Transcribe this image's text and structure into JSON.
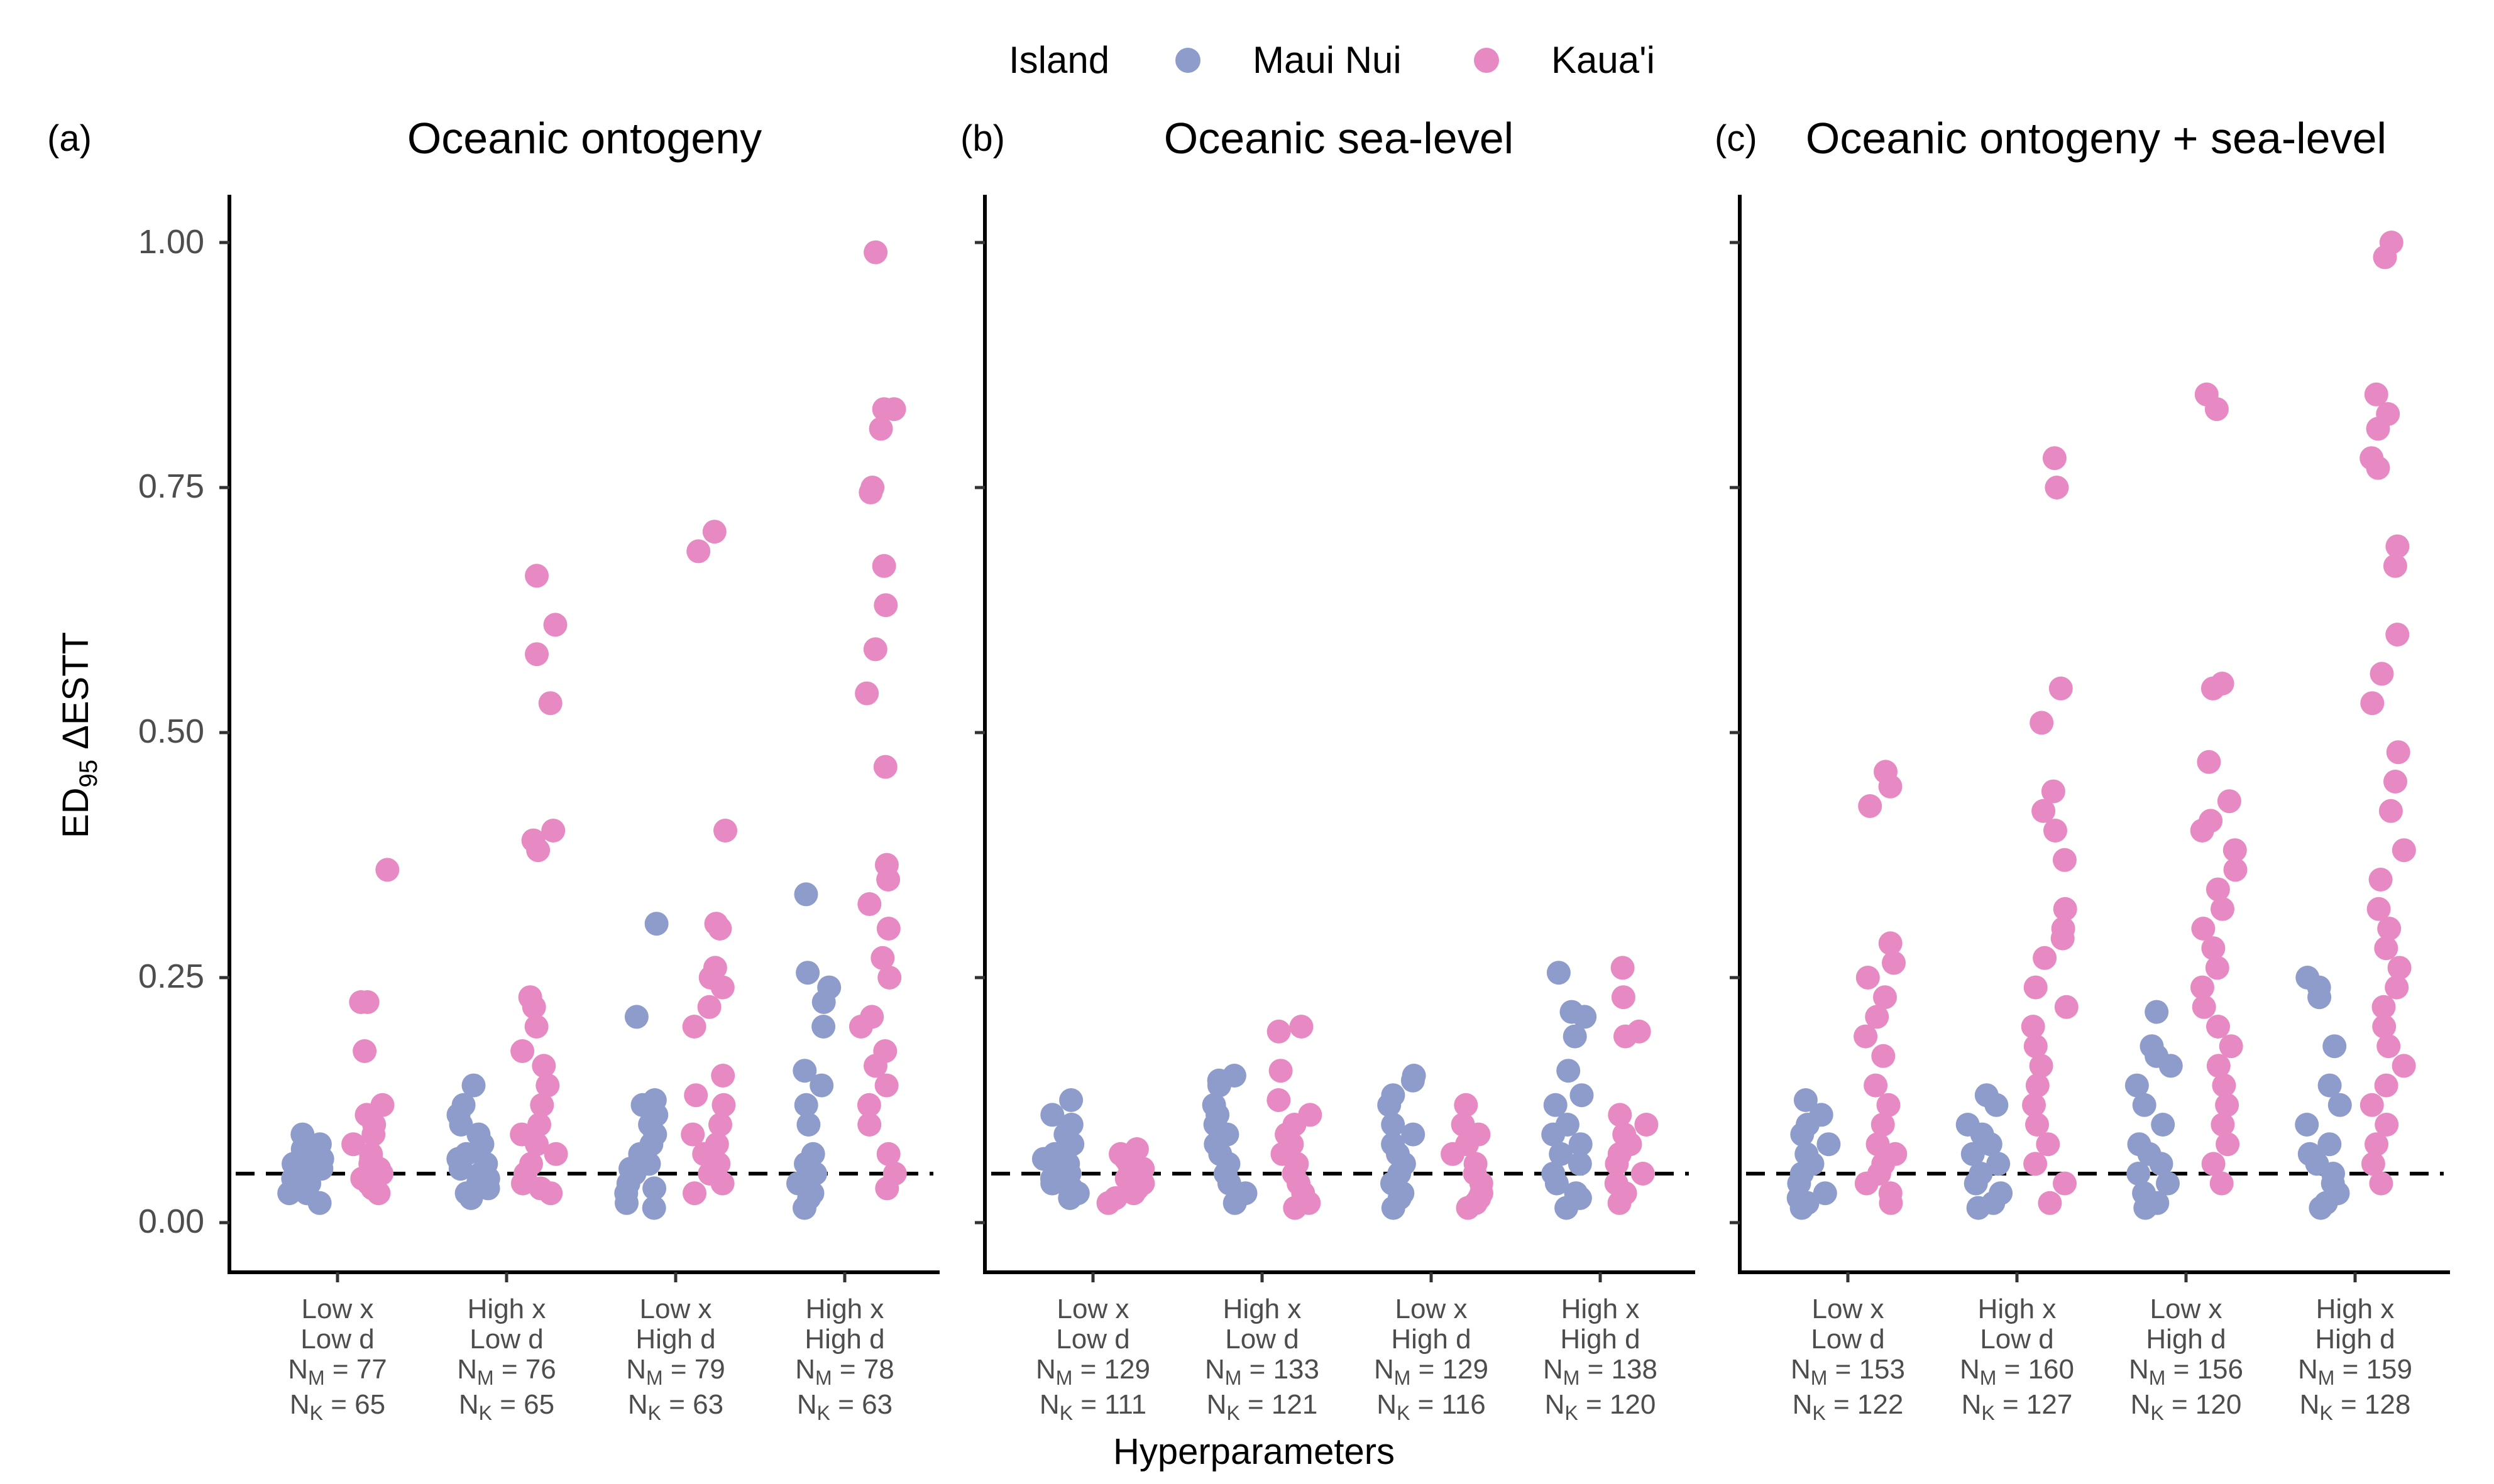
{
  "legend": {
    "title": "Island",
    "items": [
      {
        "label": "Maui Nui",
        "color": "#8E9CCB"
      },
      {
        "label": "Kaua'i",
        "color": "#E78AC3"
      }
    ]
  },
  "axes": {
    "ylabel_main": "ED",
    "ylabel_sub": "95",
    "ylabel_rest": " ΔESTT",
    "xlabel": "Hyperparameters",
    "yticks": [
      "0.00",
      "0.25",
      "0.50",
      "0.75",
      "1.00"
    ]
  },
  "chart_data": {
    "type": "scatter",
    "ylim": [
      -0.05,
      1.05
    ],
    "reference_line": {
      "y": 0.05,
      "style": "dashed"
    },
    "panels": [
      {
        "tag": "(a)",
        "title": "Oceanic ontogeny",
        "groups": [
          {
            "line1": "Low x",
            "line2": "Low d",
            "nm": "77",
            "nk": "65",
            "maui": [
              0.02,
              0.03,
              0.03,
              0.035,
              0.04,
              0.04,
              0.045,
              0.05,
              0.05,
              0.055,
              0.06,
              0.06,
              0.065,
              0.07,
              0.075,
              0.08,
              0.09
            ],
            "kauai": [
              0.03,
              0.035,
              0.04,
              0.045,
              0.05,
              0.055,
              0.06,
              0.065,
              0.07,
              0.08,
              0.09,
              0.1,
              0.11,
              0.12,
              0.175,
              0.225,
              0.225,
              0.36
            ]
          },
          {
            "line1": "High x",
            "line2": "Low d",
            "nm": "76",
            "nk": "65",
            "maui": [
              0.025,
              0.03,
              0.035,
              0.04,
              0.045,
              0.05,
              0.055,
              0.06,
              0.065,
              0.07,
              0.08,
              0.09,
              0.1,
              0.11,
              0.12,
              0.14
            ],
            "kauai": [
              0.03,
              0.035,
              0.04,
              0.05,
              0.06,
              0.07,
              0.08,
              0.09,
              0.1,
              0.12,
              0.14,
              0.16,
              0.175,
              0.2,
              0.22,
              0.23,
              0.38,
              0.39,
              0.4,
              0.53,
              0.58,
              0.61,
              0.66
            ]
          },
          {
            "line1": "Low x",
            "line2": "High d",
            "nm": "79",
            "nk": "63",
            "maui": [
              0.015,
              0.02,
              0.03,
              0.035,
              0.04,
              0.05,
              0.055,
              0.06,
              0.07,
              0.08,
              0.09,
              0.1,
              0.11,
              0.12,
              0.125,
              0.21,
              0.305
            ],
            "kauai": [
              0.03,
              0.04,
              0.05,
              0.06,
              0.07,
              0.08,
              0.09,
              0.1,
              0.12,
              0.13,
              0.15,
              0.2,
              0.22,
              0.24,
              0.25,
              0.26,
              0.3,
              0.305,
              0.4,
              0.685,
              0.705
            ]
          },
          {
            "line1": "High x",
            "line2": "High d",
            "nm": "78",
            "nk": "63",
            "maui": [
              0.015,
              0.025,
              0.03,
              0.04,
              0.05,
              0.06,
              0.07,
              0.1,
              0.12,
              0.14,
              0.155,
              0.2,
              0.225,
              0.24,
              0.255,
              0.335
            ],
            "kauai": [
              0.035,
              0.05,
              0.07,
              0.1,
              0.12,
              0.14,
              0.16,
              0.175,
              0.2,
              0.21,
              0.25,
              0.27,
              0.3,
              0.325,
              0.35,
              0.365,
              0.465,
              0.54,
              0.585,
              0.63,
              0.67,
              0.745,
              0.75,
              0.81,
              0.83,
              0.83,
              0.99
            ]
          }
        ]
      },
      {
        "tag": "(b)",
        "title": "Oceanic sea-level",
        "groups": [
          {
            "line1": "Low x",
            "line2": "Low d",
            "nm": "129",
            "nk": "111",
            "maui": [
              0.025,
              0.03,
              0.035,
              0.04,
              0.045,
              0.05,
              0.055,
              0.06,
              0.065,
              0.07,
              0.08,
              0.09,
              0.1,
              0.11,
              0.125
            ],
            "kauai": [
              0.02,
              0.025,
              0.03,
              0.035,
              0.04,
              0.045,
              0.05,
              0.055,
              0.06,
              0.065,
              0.07,
              0.075
            ]
          },
          {
            "line1": "High x",
            "line2": "Low d",
            "nm": "133",
            "nk": "121",
            "maui": [
              0.02,
              0.03,
              0.04,
              0.05,
              0.06,
              0.07,
              0.08,
              0.09,
              0.1,
              0.11,
              0.12,
              0.14,
              0.145,
              0.15
            ],
            "kauai": [
              0.015,
              0.02,
              0.03,
              0.04,
              0.05,
              0.06,
              0.07,
              0.08,
              0.09,
              0.1,
              0.11,
              0.125,
              0.155,
              0.195,
              0.2
            ]
          },
          {
            "line1": "Low x",
            "line2": "High d",
            "nm": "129",
            "nk": "116",
            "maui": [
              0.015,
              0.025,
              0.03,
              0.04,
              0.05,
              0.06,
              0.07,
              0.08,
              0.09,
              0.1,
              0.12,
              0.13,
              0.145,
              0.15
            ],
            "kauai": [
              0.015,
              0.02,
              0.025,
              0.03,
              0.04,
              0.05,
              0.06,
              0.07,
              0.08,
              0.09,
              0.1,
              0.12
            ]
          },
          {
            "line1": "High x",
            "line2": "High d",
            "nm": "138",
            "nk": "120",
            "maui": [
              0.015,
              0.025,
              0.03,
              0.04,
              0.05,
              0.06,
              0.07,
              0.08,
              0.09,
              0.1,
              0.12,
              0.13,
              0.155,
              0.19,
              0.21,
              0.215,
              0.255
            ],
            "kauai": [
              0.02,
              0.03,
              0.04,
              0.05,
              0.06,
              0.07,
              0.08,
              0.09,
              0.1,
              0.11,
              0.19,
              0.195,
              0.23,
              0.26
            ]
          }
        ]
      },
      {
        "tag": "(c)",
        "title": "Oceanic ontogeny + sea-level",
        "groups": [
          {
            "line1": "Low x",
            "line2": "Low d",
            "nm": "153",
            "nk": "122",
            "maui": [
              0.015,
              0.02,
              0.025,
              0.03,
              0.04,
              0.05,
              0.06,
              0.07,
              0.08,
              0.09,
              0.1,
              0.11,
              0.125
            ],
            "kauai": [
              0.02,
              0.03,
              0.04,
              0.05,
              0.06,
              0.07,
              0.08,
              0.1,
              0.12,
              0.14,
              0.17,
              0.19,
              0.21,
              0.23,
              0.25,
              0.265,
              0.285,
              0.425,
              0.445,
              0.46
            ]
          },
          {
            "line1": "High x",
            "line2": "Low d",
            "nm": "160",
            "nk": "127",
            "maui": [
              0.015,
              0.02,
              0.03,
              0.04,
              0.05,
              0.06,
              0.07,
              0.08,
              0.09,
              0.1,
              0.12,
              0.13
            ],
            "kauai": [
              0.02,
              0.04,
              0.06,
              0.08,
              0.1,
              0.12,
              0.14,
              0.16,
              0.18,
              0.2,
              0.22,
              0.24,
              0.27,
              0.29,
              0.3,
              0.32,
              0.37,
              0.4,
              0.42,
              0.44,
              0.51,
              0.545,
              0.75,
              0.78
            ]
          },
          {
            "line1": "Low x",
            "line2": "High d",
            "nm": "156",
            "nk": "120",
            "maui": [
              0.015,
              0.02,
              0.03,
              0.04,
              0.05,
              0.06,
              0.07,
              0.08,
              0.1,
              0.12,
              0.14,
              0.16,
              0.17,
              0.18,
              0.215
            ],
            "kauai": [
              0.04,
              0.06,
              0.08,
              0.1,
              0.12,
              0.14,
              0.16,
              0.18,
              0.2,
              0.22,
              0.24,
              0.26,
              0.28,
              0.3,
              0.32,
              0.34,
              0.36,
              0.38,
              0.4,
              0.41,
              0.43,
              0.47,
              0.545,
              0.55,
              0.83,
              0.845
            ]
          },
          {
            "line1": "High x",
            "line2": "High d",
            "nm": "159",
            "nk": "128",
            "maui": [
              0.015,
              0.02,
              0.03,
              0.04,
              0.05,
              0.06,
              0.07,
              0.08,
              0.1,
              0.12,
              0.14,
              0.18,
              0.23,
              0.24,
              0.25
            ],
            "kauai": [
              0.04,
              0.06,
              0.08,
              0.1,
              0.12,
              0.14,
              0.16,
              0.18,
              0.2,
              0.22,
              0.24,
              0.26,
              0.28,
              0.3,
              0.32,
              0.35,
              0.38,
              0.42,
              0.45,
              0.48,
              0.53,
              0.56,
              0.6,
              0.67,
              0.69,
              0.77,
              0.78,
              0.81,
              0.825,
              0.845,
              0.985,
              1.0
            ]
          }
        ]
      }
    ]
  }
}
